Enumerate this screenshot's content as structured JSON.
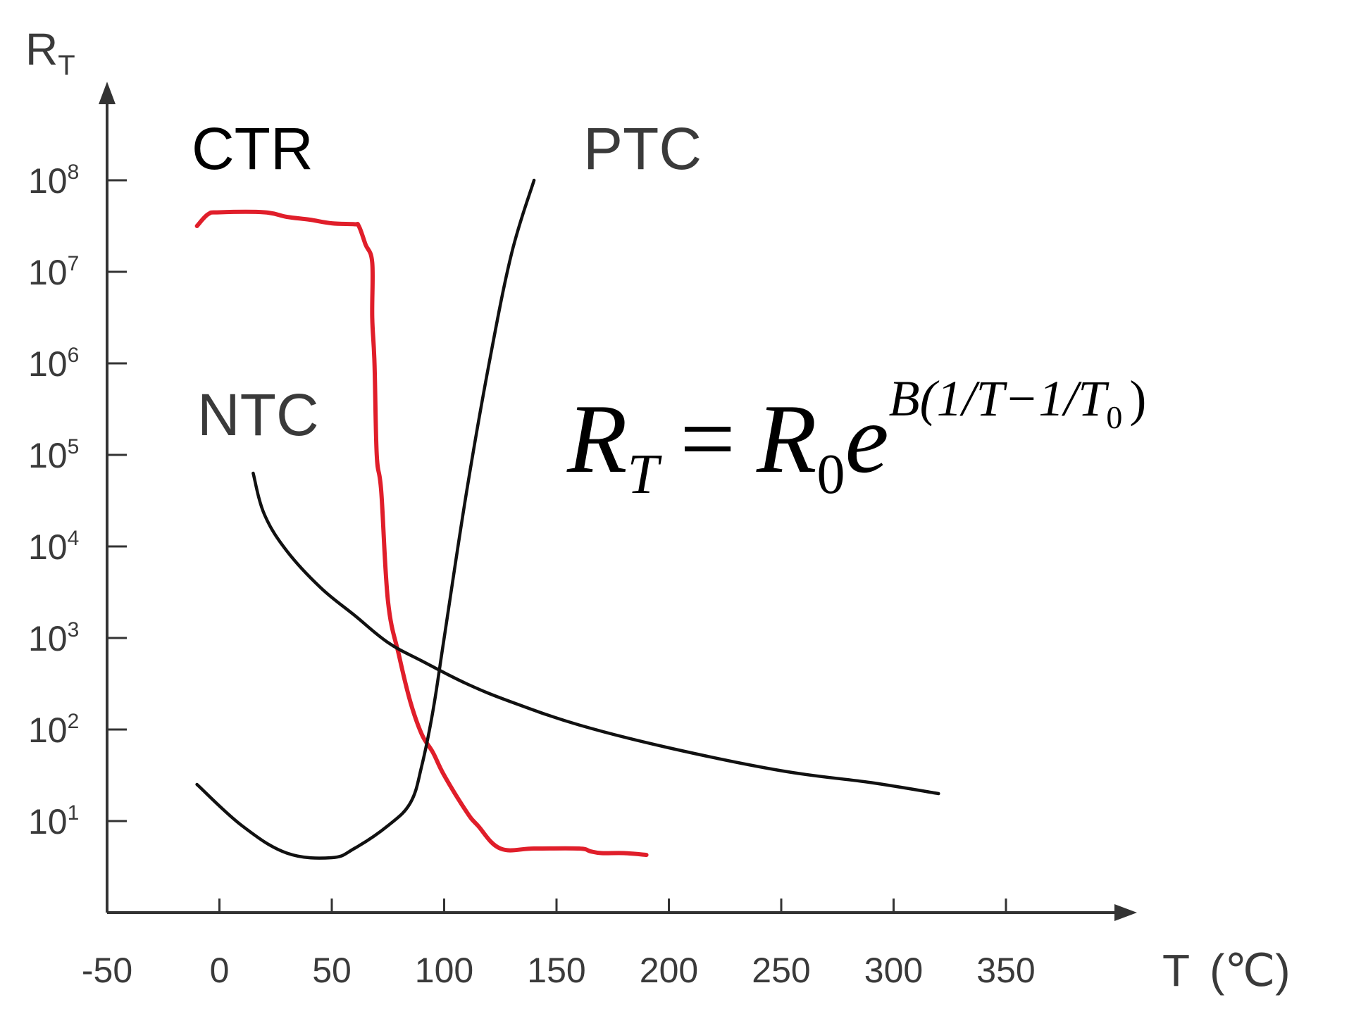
{
  "chart_data": {
    "type": "line",
    "xlabel": "T",
    "xlabel_unit": "(℃)",
    "ylabel": "R",
    "ylabel_sub": "T",
    "yscale": "log",
    "xlim": [
      -50,
      400
    ],
    "ylim_exp": [
      0.0,
      9.0
    ],
    "x_ticks": [
      -50,
      0,
      50,
      100,
      150,
      200,
      250,
      300,
      350
    ],
    "x_tick_labels": [
      "-50",
      "0",
      "50",
      "100",
      "150",
      "200",
      "250",
      "300",
      "350"
    ],
    "y_ticks_exp": [
      1,
      2,
      3,
      4,
      5,
      6,
      7,
      8
    ],
    "y_tick_base": "10",
    "y_tick_exponents": [
      "1",
      "2",
      "3",
      "4",
      "5",
      "6",
      "7",
      "8"
    ],
    "grid": false,
    "series": [
      {
        "name": "CTR",
        "color": "#e01e2a",
        "x": [
          -10,
          -5,
          0,
          20,
          30,
          40,
          50,
          60,
          62,
          65,
          68,
          68,
          69,
          70,
          72,
          75,
          80,
          85,
          90,
          95,
          100,
          110,
          115,
          125,
          140,
          160,
          165,
          170,
          180,
          190
        ],
        "y_exp": [
          7.5,
          7.63,
          7.65,
          7.65,
          7.6,
          7.57,
          7.53,
          7.52,
          7.5,
          7.3,
          7.1,
          6.5,
          6.0,
          5.0,
          4.6,
          3.4,
          2.8,
          2.3,
          1.95,
          1.75,
          1.5,
          1.1,
          0.95,
          0.7,
          0.7,
          0.7,
          0.67,
          0.65,
          0.65,
          0.63
        ]
      },
      {
        "name": "PTC",
        "color": "#111111",
        "x": [
          -10,
          10,
          30,
          50,
          60,
          75,
          85,
          90,
          95,
          100,
          110,
          120,
          130,
          140
        ],
        "y_exp": [
          1.4,
          0.95,
          0.65,
          0.6,
          0.7,
          0.95,
          1.2,
          1.6,
          2.2,
          3.0,
          4.6,
          6.0,
          7.2,
          8.0
        ]
      },
      {
        "name": "NTC",
        "color": "#111111",
        "x": [
          15,
          20,
          30,
          45,
          60,
          75,
          90,
          110,
          130,
          160,
          200,
          250,
          290,
          320
        ],
        "y_exp": [
          4.8,
          4.35,
          3.95,
          3.55,
          3.25,
          2.95,
          2.75,
          2.5,
          2.3,
          2.05,
          1.8,
          1.55,
          1.42,
          1.3
        ]
      }
    ],
    "annotations": {
      "formula_lhs": "R",
      "formula_lhs_sub": "T",
      "formula_eq": "=",
      "formula_r0": "R",
      "formula_r0_sub": "0",
      "formula_e": "e",
      "formula_exp_main": "B(1/T−1/T",
      "formula_exp_sub": "0",
      "formula_exp_close": ")"
    }
  }
}
